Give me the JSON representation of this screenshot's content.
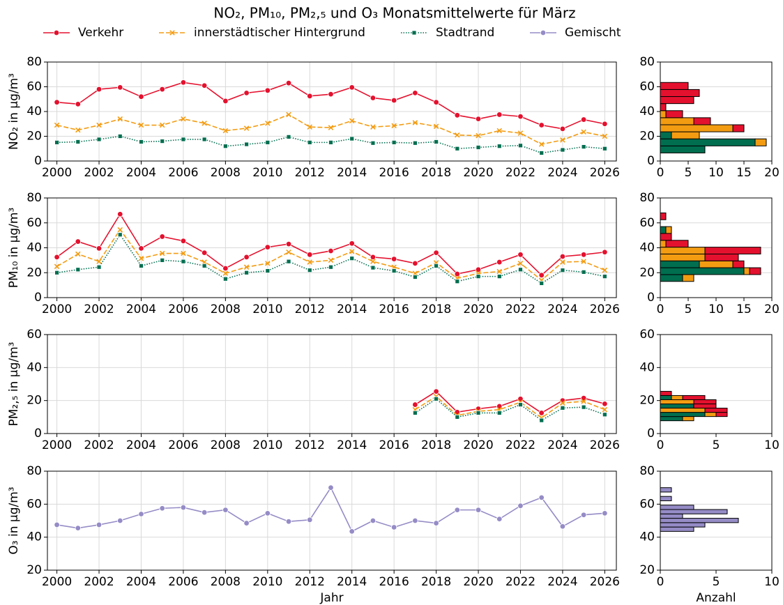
{
  "title": "NO₂, PM₁₀, PM₂,₅ und O₃ Monatsmittelwerte für März",
  "chart_data": [
    {
      "type": "line",
      "ylabel": "NO₂ in µg/m³",
      "grid": true,
      "x": [
        2000,
        2001,
        2002,
        2003,
        2004,
        2005,
        2006,
        2007,
        2008,
        2009,
        2010,
        2011,
        2012,
        2013,
        2014,
        2015,
        2016,
        2017,
        2018,
        2019,
        2020,
        2021,
        2022,
        2023,
        2024,
        2025,
        2026
      ],
      "xlim": [
        1999.55,
        2026.55
      ],
      "xticks": [
        2000,
        2002,
        2004,
        2006,
        2008,
        2010,
        2012,
        2014,
        2016,
        2018,
        2020,
        2022,
        2024,
        2026
      ],
      "ylim": [
        0,
        80
      ],
      "yticks": [
        0,
        20,
        40,
        60,
        80
      ],
      "series": [
        {
          "name": "Verkehr",
          "color": "#e4112e",
          "marker": "circle",
          "linestyle": "solid",
          "values": [
            47.5,
            46,
            58,
            59.5,
            52,
            58,
            63.5,
            61,
            48.5,
            55,
            57,
            63,
            52.5,
            54,
            59.5,
            51,
            49,
            55,
            47.5,
            37,
            34,
            37.5,
            36,
            29,
            26,
            33.5,
            30
          ]
        },
        {
          "name": "innerstädtischer Hintergrund",
          "color": "#f39c12",
          "marker": "x",
          "linestyle": "dashed",
          "values": [
            29,
            25,
            29,
            34,
            29,
            29,
            34,
            30.5,
            24.5,
            26.5,
            30.5,
            37.5,
            27.5,
            27,
            32.5,
            27.5,
            28.5,
            31,
            28,
            21,
            20.5,
            24.5,
            22.5,
            13.5,
            17,
            23.5,
            20
          ]
        },
        {
          "name": "Stadtrand",
          "color": "#006e4f",
          "marker": "square",
          "linestyle": "dotted",
          "values": [
            15,
            15.5,
            17.5,
            20,
            15.5,
            16,
            17.5,
            17.5,
            12,
            13.5,
            15,
            19.5,
            15,
            15,
            18,
            14.5,
            15,
            14.5,
            15.5,
            10,
            11,
            12,
            12.5,
            6.5,
            9,
            11.5,
            10
          ]
        }
      ]
    },
    {
      "type": "histogram",
      "orientation": "horizontal",
      "grid": true,
      "bins": [
        6.5,
        12.2,
        17.9,
        23.6,
        29.3,
        35,
        40.7,
        46.4,
        52.1,
        57.8,
        63.5
      ],
      "xlim": [
        0,
        20
      ],
      "xticks": [
        0,
        5,
        10,
        15,
        20
      ],
      "ylim": [
        0,
        80
      ],
      "yticks": [
        0,
        20,
        40,
        60,
        80
      ],
      "series": [
        {
          "color": "#006e4f",
          "values": [
            8,
            17,
            2,
            0,
            0,
            0,
            0,
            0,
            0,
            0
          ]
        },
        {
          "color": "#f39c12",
          "values": [
            0,
            2,
            5,
            13,
            6,
            1,
            0,
            0,
            0,
            0
          ]
        },
        {
          "color": "#e4112e",
          "values": [
            0,
            0,
            0,
            2,
            3,
            3,
            1,
            6,
            7,
            5
          ]
        }
      ]
    },
    {
      "type": "line",
      "ylabel": "PM₁₀ in µg/m³",
      "grid": true,
      "x": [
        2000,
        2001,
        2002,
        2003,
        2004,
        2005,
        2006,
        2007,
        2008,
        2009,
        2010,
        2011,
        2012,
        2013,
        2014,
        2015,
        2016,
        2017,
        2018,
        2019,
        2020,
        2021,
        2022,
        2023,
        2024,
        2025,
        2026
      ],
      "xlim": [
        1999.55,
        2026.55
      ],
      "xticks": [
        2000,
        2002,
        2004,
        2006,
        2008,
        2010,
        2012,
        2014,
        2016,
        2018,
        2020,
        2022,
        2024,
        2026
      ],
      "ylim": [
        0,
        80
      ],
      "yticks": [
        0,
        20,
        40,
        60,
        80
      ],
      "series": [
        {
          "color": "#e4112e",
          "marker": "circle",
          "linestyle": "solid",
          "values": [
            32.5,
            45,
            39.5,
            67,
            39.5,
            49,
            45.5,
            36,
            23.5,
            32.5,
            40.5,
            43,
            34.5,
            37.5,
            43.5,
            32.5,
            31,
            27.5,
            36,
            19,
            22.5,
            28.5,
            34.5,
            18,
            33,
            34.5,
            36.5
          ]
        },
        {
          "color": "#f39c12",
          "marker": "x",
          "linestyle": "dashed",
          "values": [
            25,
            35,
            29,
            54.5,
            31.5,
            35.5,
            35.5,
            28.5,
            19.5,
            24.5,
            27.5,
            36.5,
            28.5,
            30,
            37,
            29,
            24.5,
            19.5,
            28,
            15.5,
            19.5,
            21,
            27.5,
            14,
            28.5,
            29,
            22
          ]
        },
        {
          "color": "#006e4f",
          "marker": "square",
          "linestyle": "dotted",
          "values": [
            20,
            22.5,
            24.5,
            50.5,
            25.5,
            30,
            29,
            25.5,
            15,
            20,
            21.5,
            29,
            22,
            24.5,
            31.5,
            24,
            21.5,
            16.5,
            25.5,
            13,
            17,
            17,
            22.5,
            11.5,
            22,
            20.5,
            17
          ]
        }
      ]
    },
    {
      "type": "histogram",
      "orientation": "horizontal",
      "grid": true,
      "bins": [
        13,
        18.5,
        24,
        29.5,
        35,
        40.5,
        46,
        51.5,
        57,
        62.5,
        68
      ],
      "xlim": [
        0,
        20
      ],
      "xticks": [
        0,
        5,
        10,
        15,
        20
      ],
      "ylim": [
        0,
        80
      ],
      "yticks": [
        0,
        20,
        40,
        60,
        80
      ],
      "series": [
        {
          "color": "#006e4f",
          "values": [
            4,
            15,
            7,
            0,
            0,
            0,
            0,
            1,
            0,
            0
          ]
        },
        {
          "color": "#f39c12",
          "values": [
            2,
            1,
            6,
            8,
            8,
            1,
            0,
            1,
            0,
            0
          ]
        },
        {
          "color": "#e4112e",
          "values": [
            0,
            2,
            2,
            6,
            10,
            4,
            2,
            0,
            0,
            1
          ]
        }
      ]
    },
    {
      "type": "line",
      "ylabel": "PM₂,₅ in µg/m³",
      "grid": true,
      "x": [
        2000,
        2001,
        2002,
        2003,
        2004,
        2005,
        2006,
        2007,
        2008,
        2009,
        2010,
        2011,
        2012,
        2013,
        2014,
        2015,
        2016,
        2017,
        2018,
        2019,
        2020,
        2021,
        2022,
        2023,
        2024,
        2025,
        2026
      ],
      "xlim": [
        1999.55,
        2026.55
      ],
      "xticks": [
        2000,
        2002,
        2004,
        2006,
        2008,
        2010,
        2012,
        2014,
        2016,
        2018,
        2020,
        2022,
        2024,
        2026
      ],
      "ylim": [
        0,
        60
      ],
      "yticks": [
        0,
        20,
        40,
        60
      ],
      "series": [
        {
          "color": "#e4112e",
          "marker": "circle",
          "linestyle": "solid",
          "values": [
            null,
            null,
            null,
            null,
            null,
            null,
            null,
            null,
            null,
            null,
            null,
            null,
            null,
            null,
            null,
            null,
            null,
            17.5,
            25.5,
            13,
            15,
            16.5,
            21,
            12.5,
            20,
            21.5,
            18
          ]
        },
        {
          "color": "#f39c12",
          "marker": "x",
          "linestyle": "dashed",
          "values": [
            null,
            null,
            null,
            null,
            null,
            null,
            null,
            null,
            null,
            null,
            null,
            null,
            null,
            null,
            null,
            null,
            null,
            14.5,
            22.5,
            11,
            13.5,
            14.5,
            19,
            9.5,
            18.5,
            19.5,
            14.5
          ]
        },
        {
          "color": "#006e4f",
          "marker": "square",
          "linestyle": "dotted",
          "values": [
            null,
            null,
            null,
            null,
            null,
            null,
            null,
            null,
            null,
            null,
            null,
            null,
            null,
            null,
            null,
            null,
            null,
            12.5,
            21,
            10,
            12.5,
            12.5,
            17.5,
            8,
            15.5,
            16,
            11.5
          ]
        }
      ]
    },
    {
      "type": "histogram",
      "orientation": "horizontal",
      "grid": true,
      "bins": [
        7.75,
        10.3,
        12.85,
        15.4,
        17.95,
        20.5,
        23.05,
        25.6
      ],
      "xlim": [
        0,
        10
      ],
      "xticks": [
        0,
        5,
        10
      ],
      "ylim": [
        0,
        60
      ],
      "yticks": [
        0,
        20,
        40,
        60
      ],
      "series": [
        {
          "color": "#006e4f",
          "values": [
            2,
            4,
            0,
            3,
            0,
            1,
            0
          ]
        },
        {
          "color": "#f39c12",
          "values": [
            1,
            1,
            4,
            0,
            3,
            1,
            0
          ]
        },
        {
          "color": "#e4112e",
          "values": [
            0,
            1,
            2,
            2,
            2,
            2,
            1
          ]
        }
      ]
    },
    {
      "type": "line",
      "ylabel": "O₃ in µg/m³",
      "xlabel": "Jahr",
      "grid": true,
      "x": [
        2000,
        2001,
        2002,
        2003,
        2004,
        2005,
        2006,
        2007,
        2008,
        2009,
        2010,
        2011,
        2012,
        2013,
        2014,
        2015,
        2016,
        2017,
        2018,
        2019,
        2020,
        2021,
        2022,
        2023,
        2024,
        2025,
        2026
      ],
      "xlim": [
        1999.55,
        2026.55
      ],
      "xticks": [
        2000,
        2002,
        2004,
        2006,
        2008,
        2010,
        2012,
        2014,
        2016,
        2018,
        2020,
        2022,
        2024,
        2026
      ],
      "ylim": [
        20,
        80
      ],
      "yticks": [
        20,
        40,
        60,
        80
      ],
      "series": [
        {
          "name": "Gemischt",
          "color": "#958cc6",
          "marker": "circle",
          "linestyle": "solid",
          "values": [
            47.5,
            45.5,
            47.5,
            50,
            54,
            57.5,
            58,
            55,
            56.5,
            48.5,
            54.5,
            49.5,
            50.5,
            70,
            43.5,
            50,
            46,
            50,
            48.5,
            56.5,
            56.5,
            51,
            59,
            64,
            46.5,
            53.5,
            54.5
          ]
        }
      ]
    },
    {
      "type": "histogram",
      "orientation": "horizontal",
      "xlabel": "Anzahl",
      "grid": true,
      "bins": [
        43.5,
        46.15,
        48.8,
        51.45,
        54.1,
        56.75,
        59.4,
        62.05,
        64.7,
        67.35,
        70
      ],
      "xlim": [
        0,
        10
      ],
      "xticks": [
        0,
        5,
        10
      ],
      "ylim": [
        20,
        80
      ],
      "yticks": [
        20,
        40,
        60,
        80
      ],
      "series": [
        {
          "color": "#958cc6",
          "values": [
            3,
            4,
            7,
            2,
            6,
            3,
            0,
            1,
            0,
            1
          ]
        }
      ]
    }
  ]
}
